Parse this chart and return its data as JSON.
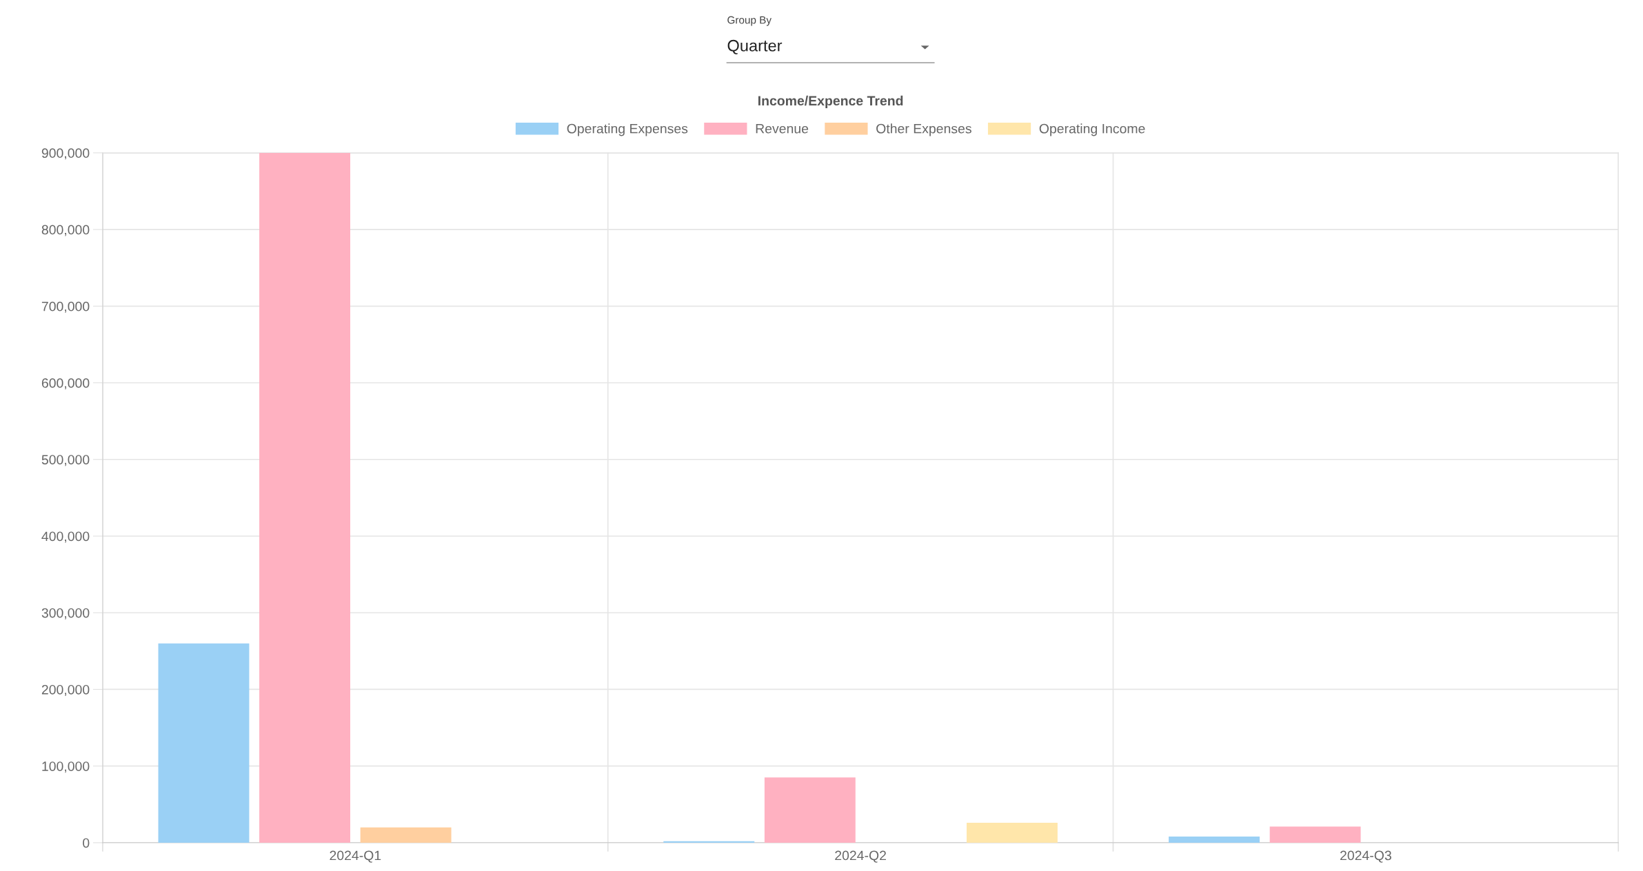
{
  "chart_data": {
    "type": "bar",
    "title": "Income/Expence Trend",
    "categories": [
      "2024-Q1",
      "2024-Q2",
      "2024-Q3"
    ],
    "series": [
      {
        "name": "Operating Expenses",
        "color": "#9ad0f5",
        "values": [
          260000,
          2000,
          8000
        ]
      },
      {
        "name": "Revenue",
        "color": "#ffb1c1",
        "values": [
          900000,
          85000,
          21000
        ]
      },
      {
        "name": "Other Expenses",
        "color": "#ffcf9f",
        "values": [
          20000,
          0,
          0
        ]
      },
      {
        "name": "Operating Income",
        "color": "#ffe6aa",
        "values": [
          0,
          26000,
          0
        ]
      }
    ],
    "ylim": [
      0,
      900000
    ],
    "yticks": [
      {
        "value": 0,
        "label": "0"
      },
      {
        "value": 100000,
        "label": "100,000"
      },
      {
        "value": 200000,
        "label": "200,000"
      },
      {
        "value": 300000,
        "label": "300,000"
      },
      {
        "value": 400000,
        "label": "400,000"
      },
      {
        "value": 500000,
        "label": "500,000"
      },
      {
        "value": 600000,
        "label": "600,000"
      },
      {
        "value": 700000,
        "label": "700,000"
      },
      {
        "value": 800000,
        "label": "800,000"
      },
      {
        "value": 900000,
        "label": "900,000"
      }
    ],
    "grid": true,
    "legend": "top",
    "annotations": [
      "Group By",
      "Quarter"
    ]
  }
}
